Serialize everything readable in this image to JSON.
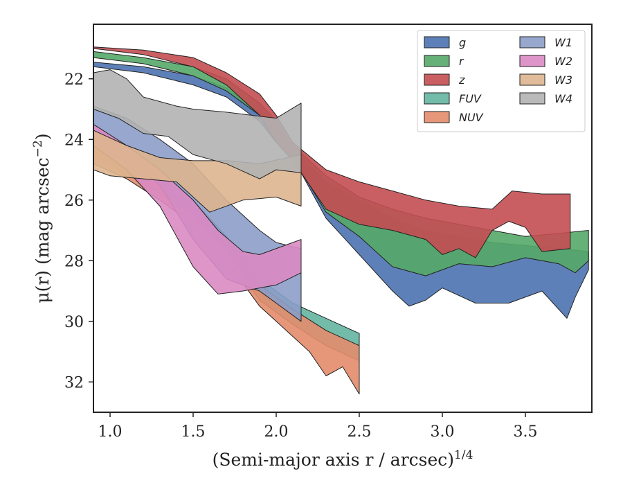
{
  "chart_data": {
    "type": "area",
    "title": "",
    "xlabel": "(Semi-major axis r / arcsec)",
    "xlabel_superscript": "1/4",
    "ylabel": "μ(r) (mag arcsec",
    "ylabel_superscript": "−2",
    "ylabel_close": ")",
    "xlim": [
      0.9,
      3.9
    ],
    "ylim": [
      33.0,
      20.2
    ],
    "y_inverted": true,
    "grid": false,
    "legend_placement": "top-right",
    "legend_columns": 2,
    "x_ticks": [
      1.0,
      1.5,
      2.0,
      2.5,
      3.0,
      3.5
    ],
    "x_tick_labels": [
      "1.0",
      "1.5",
      "2.0",
      "2.5",
      "3.0",
      "3.5"
    ],
    "y_ticks": [
      22,
      24,
      26,
      28,
      30,
      32
    ],
    "y_tick_labels": [
      "22",
      "24",
      "26",
      "28",
      "30",
      "32"
    ],
    "series": [
      {
        "name": "g",
        "color": "#4C72B0",
        "upper": [
          [
            0.9,
            21.45
          ],
          [
            1.2,
            21.6
          ],
          [
            1.5,
            21.9
          ],
          [
            1.7,
            22.3
          ],
          [
            1.9,
            23.1
          ],
          [
            2.0,
            23.7
          ],
          [
            2.1,
            24.3
          ],
          [
            2.3,
            25.4
          ],
          [
            2.5,
            26.0
          ],
          [
            2.7,
            26.6
          ],
          [
            2.9,
            27.0
          ],
          [
            3.1,
            27.2
          ],
          [
            3.3,
            27.4
          ],
          [
            3.5,
            27.5
          ],
          [
            3.7,
            27.6
          ],
          [
            3.88,
            27.7
          ]
        ],
        "lower": [
          [
            3.88,
            28.3
          ],
          [
            3.8,
            29.2
          ],
          [
            3.75,
            29.9
          ],
          [
            3.6,
            29.0
          ],
          [
            3.4,
            29.4
          ],
          [
            3.2,
            29.4
          ],
          [
            3.0,
            28.9
          ],
          [
            2.9,
            29.3
          ],
          [
            2.8,
            29.5
          ],
          [
            2.7,
            29.0
          ],
          [
            2.5,
            27.8
          ],
          [
            2.3,
            26.6
          ],
          [
            2.1,
            24.6
          ],
          [
            2.0,
            24.1
          ],
          [
            1.9,
            23.4
          ],
          [
            1.7,
            22.6
          ],
          [
            1.5,
            22.2
          ],
          [
            1.2,
            21.8
          ],
          [
            0.9,
            21.6
          ]
        ]
      },
      {
        "name": "r",
        "color": "#55A868",
        "upper": [
          [
            0.9,
            21.1
          ],
          [
            1.2,
            21.3
          ],
          [
            1.5,
            21.6
          ],
          [
            1.7,
            22.0
          ],
          [
            1.9,
            22.8
          ],
          [
            2.0,
            23.4
          ],
          [
            2.1,
            24.2
          ],
          [
            2.3,
            25.2
          ],
          [
            2.5,
            25.9
          ],
          [
            2.7,
            26.3
          ],
          [
            2.9,
            26.6
          ],
          [
            3.1,
            26.8
          ],
          [
            3.3,
            27.0
          ],
          [
            3.5,
            27.2
          ],
          [
            3.7,
            27.1
          ],
          [
            3.88,
            27.0
          ]
        ],
        "lower": [
          [
            3.88,
            28.0
          ],
          [
            3.8,
            28.4
          ],
          [
            3.7,
            28.1
          ],
          [
            3.5,
            27.9
          ],
          [
            3.3,
            28.2
          ],
          [
            3.1,
            28.1
          ],
          [
            2.9,
            28.5
          ],
          [
            2.7,
            28.2
          ],
          [
            2.5,
            27.2
          ],
          [
            2.3,
            26.4
          ],
          [
            2.1,
            24.6
          ],
          [
            2.0,
            24.0
          ],
          [
            1.9,
            23.2
          ],
          [
            1.7,
            22.4
          ],
          [
            1.5,
            21.9
          ],
          [
            1.2,
            21.5
          ],
          [
            0.9,
            21.3
          ]
        ]
      },
      {
        "name": "z",
        "color": "#C44E52",
        "upper": [
          [
            0.9,
            20.95
          ],
          [
            1.2,
            21.05
          ],
          [
            1.5,
            21.3
          ],
          [
            1.7,
            21.8
          ],
          [
            1.9,
            22.5
          ],
          [
            2.0,
            23.2
          ],
          [
            2.1,
            24.1
          ],
          [
            2.3,
            25.0
          ],
          [
            2.5,
            25.4
          ],
          [
            2.7,
            25.7
          ],
          [
            2.9,
            26.0
          ],
          [
            3.1,
            26.2
          ],
          [
            3.3,
            26.3
          ],
          [
            3.42,
            25.7
          ],
          [
            3.6,
            25.8
          ],
          [
            3.77,
            25.8
          ]
        ],
        "lower": [
          [
            3.77,
            27.6
          ],
          [
            3.6,
            27.7
          ],
          [
            3.5,
            26.9
          ],
          [
            3.4,
            26.7
          ],
          [
            3.3,
            27.0
          ],
          [
            3.2,
            27.9
          ],
          [
            3.1,
            27.6
          ],
          [
            3.0,
            27.8
          ],
          [
            2.9,
            27.3
          ],
          [
            2.7,
            27.0
          ],
          [
            2.5,
            26.8
          ],
          [
            2.3,
            26.3
          ],
          [
            2.1,
            24.7
          ],
          [
            2.0,
            24.1
          ],
          [
            1.9,
            23.2
          ],
          [
            1.7,
            22.2
          ],
          [
            1.5,
            21.6
          ],
          [
            1.2,
            21.2
          ],
          [
            0.9,
            21.0
          ]
        ]
      },
      {
        "name": "FUV",
        "color": "#64B5A0",
        "upper": [
          [
            0.9,
            24.0
          ],
          [
            1.1,
            24.5
          ],
          [
            1.3,
            25.3
          ],
          [
            1.5,
            26.0
          ],
          [
            1.7,
            27.2
          ],
          [
            1.9,
            28.6
          ],
          [
            2.1,
            29.4
          ],
          [
            2.3,
            29.9
          ],
          [
            2.5,
            30.4
          ]
        ],
        "lower": [
          [
            2.5,
            31.3
          ],
          [
            2.3,
            30.8
          ],
          [
            2.1,
            30.1
          ],
          [
            1.9,
            29.3
          ],
          [
            1.7,
            27.7
          ],
          [
            1.5,
            26.5
          ],
          [
            1.3,
            25.8
          ],
          [
            1.1,
            25.1
          ],
          [
            0.9,
            24.6
          ]
        ]
      },
      {
        "name": "NUV",
        "color": "#E38C6B",
        "upper": [
          [
            0.9,
            24.2
          ],
          [
            1.1,
            24.7
          ],
          [
            1.3,
            25.4
          ],
          [
            1.5,
            26.2
          ],
          [
            1.7,
            27.3
          ],
          [
            1.9,
            28.8
          ],
          [
            2.1,
            29.6
          ],
          [
            2.3,
            30.3
          ],
          [
            2.5,
            30.8
          ]
        ],
        "lower": [
          [
            2.5,
            32.4
          ],
          [
            2.4,
            31.5
          ],
          [
            2.3,
            31.8
          ],
          [
            2.2,
            31.0
          ],
          [
            2.1,
            30.5
          ],
          [
            1.9,
            29.5
          ],
          [
            1.7,
            28.0
          ],
          [
            1.5,
            26.8
          ],
          [
            1.3,
            26.0
          ],
          [
            1.1,
            25.3
          ],
          [
            0.9,
            24.8
          ]
        ]
      },
      {
        "name": "W1",
        "color": "#8C9DC8",
        "upper": [
          [
            0.9,
            22.9
          ],
          [
            1.1,
            23.3
          ],
          [
            1.3,
            24.0
          ],
          [
            1.5,
            24.8
          ],
          [
            1.7,
            26.0
          ],
          [
            1.9,
            27.0
          ],
          [
            2.0,
            27.4
          ],
          [
            2.15,
            27.6
          ]
        ],
        "lower": [
          [
            2.15,
            30.0
          ],
          [
            2.0,
            29.4
          ],
          [
            1.9,
            29.0
          ],
          [
            1.7,
            28.6
          ],
          [
            1.5,
            27.3
          ],
          [
            1.3,
            25.5
          ],
          [
            1.1,
            24.6
          ],
          [
            0.9,
            24.0
          ]
        ]
      },
      {
        "name": "W2",
        "color": "#DA8BC3",
        "upper": [
          [
            0.9,
            23.5
          ],
          [
            1.1,
            24.2
          ],
          [
            1.3,
            25.0
          ],
          [
            1.5,
            26.0
          ],
          [
            1.65,
            27.0
          ],
          [
            1.8,
            27.7
          ],
          [
            1.9,
            27.8
          ],
          [
            2.15,
            27.3
          ]
        ],
        "lower": [
          [
            2.15,
            28.4
          ],
          [
            2.0,
            28.8
          ],
          [
            1.8,
            29.0
          ],
          [
            1.65,
            29.1
          ],
          [
            1.5,
            28.2
          ],
          [
            1.3,
            26.2
          ],
          [
            1.1,
            25.0
          ],
          [
            0.9,
            24.2
          ]
        ]
      },
      {
        "name": "W3",
        "color": "#DDB58F",
        "upper": [
          [
            0.9,
            23.7
          ],
          [
            1.1,
            24.2
          ],
          [
            1.3,
            24.6
          ],
          [
            1.5,
            24.7
          ],
          [
            1.7,
            24.7
          ],
          [
            1.9,
            24.8
          ],
          [
            2.15,
            24.5
          ]
        ],
        "lower": [
          [
            2.15,
            26.2
          ],
          [
            2.0,
            25.9
          ],
          [
            1.8,
            26.0
          ],
          [
            1.6,
            26.4
          ],
          [
            1.4,
            25.4
          ],
          [
            1.2,
            25.3
          ],
          [
            1.0,
            25.2
          ],
          [
            0.9,
            25.0
          ]
        ]
      },
      {
        "name": "W4",
        "color": "#B3B3B3",
        "upper": [
          [
            0.9,
            21.8
          ],
          [
            1.0,
            21.7
          ],
          [
            1.1,
            22.0
          ],
          [
            1.2,
            22.6
          ],
          [
            1.4,
            22.9
          ],
          [
            1.5,
            23.0
          ],
          [
            1.7,
            23.1
          ],
          [
            1.85,
            23.2
          ],
          [
            2.0,
            23.3
          ],
          [
            2.15,
            22.8
          ]
        ],
        "lower": [
          [
            2.15,
            25.1
          ],
          [
            2.0,
            25.0
          ],
          [
            1.9,
            25.3
          ],
          [
            1.7,
            24.8
          ],
          [
            1.5,
            24.5
          ],
          [
            1.35,
            23.9
          ],
          [
            1.2,
            23.8
          ],
          [
            1.05,
            23.3
          ],
          [
            0.9,
            23.0
          ]
        ]
      }
    ]
  }
}
